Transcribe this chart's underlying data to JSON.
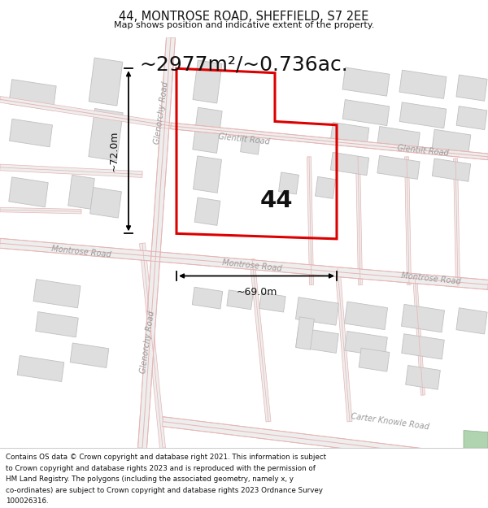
{
  "title": "44, MONTROSE ROAD, SHEFFIELD, S7 2EE",
  "subtitle": "Map shows position and indicative extent of the property.",
  "area_text": "~2977m²/~0.736ac.",
  "label_number": "44",
  "dim_width": "~69.0m",
  "dim_height": "~72.0m",
  "bg_color": "#ffffff",
  "map_bg": "#f7f7f7",
  "road_color": "#e8b4b4",
  "road_fill": "#f5e8e8",
  "building_color": "#dedede",
  "building_edge": "#c0c0c0",
  "highlight_color": "#dd0000",
  "dim_color": "#111111",
  "road_label_color": "#aaaaaa",
  "footer_lines": [
    "Contains OS data © Crown copyright and database right 2021. This information is subject",
    "to Crown copyright and database rights 2023 and is reproduced with the permission of",
    "HM Land Registry. The polygons (including the associated geometry, namely x, y",
    "co-ordinates) are subject to Crown copyright and database rights 2023 Ordnance Survey",
    "100026316."
  ]
}
